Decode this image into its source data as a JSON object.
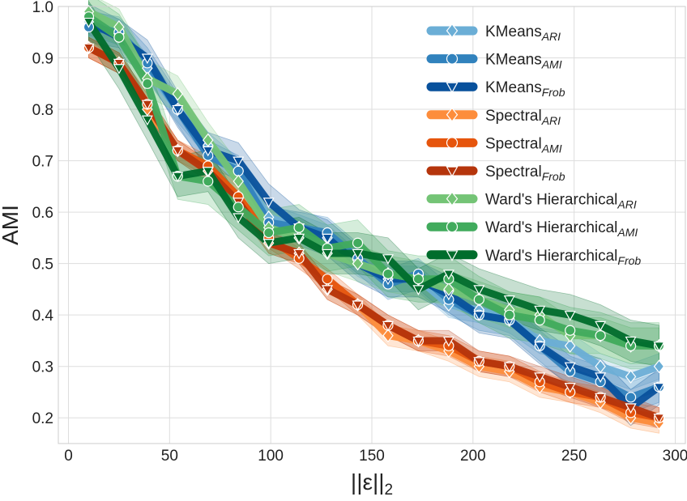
{
  "chart_data": {
    "type": "line",
    "title": "",
    "xlabel": "||ε||",
    "xlabel_sub": "2",
    "ylabel": "AMI",
    "xlim": [
      -5,
      305
    ],
    "ylim": [
      0.15,
      1.0
    ],
    "xticks": [
      "0",
      "50",
      "100",
      "150",
      "200",
      "250",
      "300"
    ],
    "yticks": [
      "0.2",
      "0.3",
      "0.4",
      "0.5",
      "0.6",
      "0.7",
      "0.8",
      "0.9",
      "1.0"
    ],
    "grid": true,
    "legend_position": "top-right",
    "x": [
      10,
      25,
      39,
      54,
      69,
      84,
      99,
      114,
      128,
      143,
      158,
      173,
      188,
      203,
      218,
      233,
      248,
      263,
      278,
      292
    ],
    "series": [
      {
        "name": "KMeans",
        "sub": "ARI",
        "color": "#6baed6",
        "marker": "diamond",
        "values": [
          0.97,
          0.95,
          0.88,
          0.8,
          0.73,
          0.68,
          0.59,
          0.57,
          0.55,
          0.5,
          0.47,
          0.47,
          0.42,
          0.41,
          0.39,
          0.35,
          0.34,
          0.3,
          0.28,
          0.3
        ],
        "band": 0.025
      },
      {
        "name": "KMeans",
        "sub": "AMI",
        "color": "#3182bd",
        "marker": "circle",
        "values": [
          0.96,
          0.95,
          0.89,
          0.8,
          0.71,
          0.68,
          0.58,
          0.57,
          0.56,
          0.51,
          0.46,
          0.48,
          0.43,
          0.4,
          0.39,
          0.34,
          0.29,
          0.27,
          0.24,
          0.26
        ],
        "band": 0.03
      },
      {
        "name": "KMeans",
        "sub": "Frob",
        "color": "#08519c",
        "marker": "tri-down",
        "values": [
          0.97,
          0.94,
          0.9,
          0.8,
          0.72,
          0.7,
          0.62,
          0.57,
          0.55,
          0.5,
          0.47,
          0.47,
          0.44,
          0.4,
          0.39,
          0.34,
          0.3,
          0.28,
          0.22,
          0.26
        ],
        "band": 0.035
      },
      {
        "name": "Spectral",
        "sub": "ARI",
        "color": "#fd8d3c",
        "marker": "diamond",
        "values": [
          0.92,
          0.89,
          0.8,
          0.72,
          0.68,
          0.63,
          0.54,
          0.52,
          0.45,
          0.42,
          0.36,
          0.35,
          0.33,
          0.3,
          0.29,
          0.26,
          0.25,
          0.23,
          0.2,
          0.19
        ],
        "band": 0.02
      },
      {
        "name": "Spectral",
        "sub": "AMI",
        "color": "#e6550d",
        "marker": "circle",
        "values": [
          0.92,
          0.89,
          0.81,
          0.72,
          0.69,
          0.63,
          0.55,
          0.51,
          0.47,
          0.42,
          0.38,
          0.35,
          0.34,
          0.31,
          0.3,
          0.27,
          0.25,
          0.24,
          0.21,
          0.2
        ],
        "band": 0.02
      },
      {
        "name": "Spectral",
        "sub": "Frob",
        "color": "#b5350c",
        "marker": "tri-down",
        "values": [
          0.92,
          0.89,
          0.81,
          0.72,
          0.68,
          0.62,
          0.54,
          0.52,
          0.45,
          0.42,
          0.38,
          0.35,
          0.35,
          0.31,
          0.3,
          0.28,
          0.26,
          0.24,
          0.22,
          0.2
        ],
        "band": 0.02
      },
      {
        "name": "Ward's Hierarchical",
        "sub": "ARI",
        "color": "#74c476",
        "marker": "diamond",
        "values": [
          0.99,
          0.96,
          0.86,
          0.83,
          0.74,
          0.66,
          0.57,
          0.55,
          0.52,
          0.5,
          0.48,
          0.47,
          0.45,
          0.43,
          0.41,
          0.4,
          0.36,
          0.36,
          0.34,
          0.34
        ],
        "band": 0.035
      },
      {
        "name": "Ward's Hierarchical",
        "sub": "AMI",
        "color": "#41ab5d",
        "marker": "circle",
        "values": [
          0.98,
          0.94,
          0.85,
          0.67,
          0.66,
          0.61,
          0.56,
          0.57,
          0.53,
          0.54,
          0.48,
          0.47,
          0.47,
          0.43,
          0.4,
          0.39,
          0.37,
          0.36,
          0.34,
          0.34
        ],
        "band": 0.045
      },
      {
        "name": "Ward's Hierarchical",
        "sub": "Frob",
        "color": "#006d2c",
        "marker": "tri-down",
        "values": [
          0.97,
          0.88,
          0.78,
          0.67,
          0.68,
          0.59,
          0.54,
          0.55,
          0.52,
          0.52,
          0.51,
          0.45,
          0.48,
          0.45,
          0.43,
          0.41,
          0.4,
          0.38,
          0.35,
          0.34
        ],
        "band": 0.04
      }
    ]
  }
}
